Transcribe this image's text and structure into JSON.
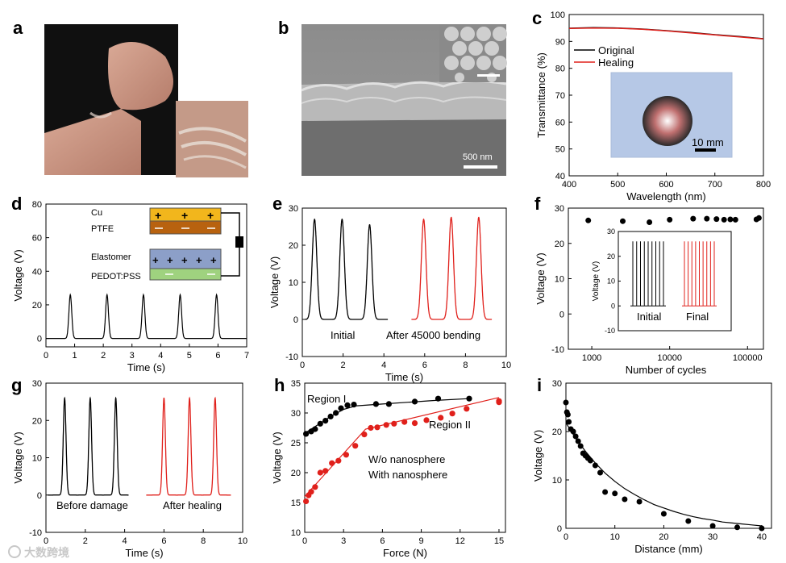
{
  "panel_labels": [
    "a",
    "b",
    "c",
    "d",
    "e",
    "f",
    "g",
    "h",
    "i"
  ],
  "watermark": "大数跨境",
  "chart_data": [
    {
      "panel": "b",
      "type": "image",
      "scale_bar_label": "500 nm"
    },
    {
      "panel": "c",
      "type": "line",
      "xlabel": "Wavelength (nm)",
      "ylabel": "Transmittance (%)",
      "xlim": [
        400,
        800
      ],
      "ylim": [
        40,
        100
      ],
      "xticks": [
        400,
        500,
        600,
        700,
        800
      ],
      "yticks": [
        40,
        50,
        60,
        70,
        80,
        90,
        100
      ],
      "series": [
        {
          "name": "Original",
          "color": "#000000",
          "x": [
            400,
            450,
            500,
            550,
            600,
            650,
            700,
            750,
            800
          ],
          "y": [
            94.9,
            95.1,
            95.0,
            94.6,
            94.0,
            93.3,
            92.5,
            91.8,
            91.0
          ]
        },
        {
          "name": "Healing",
          "color": "#e0201b",
          "x": [
            400,
            450,
            500,
            550,
            600,
            650,
            700,
            750,
            800
          ],
          "y": [
            94.8,
            95.0,
            94.9,
            94.5,
            93.9,
            93.2,
            92.4,
            91.7,
            90.9
          ]
        }
      ],
      "inset_scale_label": "10 mm"
    },
    {
      "panel": "d",
      "type": "line",
      "xlabel": "Time (s)",
      "ylabel": "Voltage (V)",
      "xlim": [
        0,
        7
      ],
      "ylim": [
        -5,
        80
      ],
      "xticks": [
        0,
        1,
        2,
        3,
        4,
        5,
        6,
        7
      ],
      "yticks": [
        0,
        20,
        40,
        60,
        80
      ],
      "peak_times": [
        0.85,
        2.13,
        3.4,
        4.68,
        5.95
      ],
      "peak_value": 26,
      "baseline": 0,
      "schematic_labels": [
        "Cu",
        "PTFE",
        "Elastomer",
        "PEDOT:PSS"
      ]
    },
    {
      "panel": "e",
      "type": "line",
      "xlabel": "Time (s)",
      "ylabel": "Voltage (V)",
      "xlim": [
        0,
        10
      ],
      "ylim": [
        -10,
        30
      ],
      "xticks": [
        0,
        2,
        4,
        6,
        8,
        10
      ],
      "yticks": [
        -10,
        0,
        10,
        20,
        30
      ],
      "series": [
        {
          "name": "Initial",
          "color": "#000000",
          "peak_times": [
            0.6,
            1.95,
            3.3
          ],
          "peak_values": [
            27,
            27,
            25.5
          ]
        },
        {
          "name": "After 45000 bending",
          "color": "#e0201b",
          "peak_times": [
            5.95,
            7.3,
            8.65
          ],
          "peak_values": [
            27,
            27.5,
            27.5
          ]
        }
      ]
    },
    {
      "panel": "f",
      "type": "scatter",
      "xlabel": "Number of cycles",
      "ylabel": "Voltage (V)",
      "xscale": "log",
      "xlim": [
        500,
        160000
      ],
      "ylim": [
        -10,
        30
      ],
      "xticks": [
        1000,
        10000,
        100000
      ],
      "xticklabels": [
        "1000",
        "10000",
        "100000"
      ],
      "yticks": [
        -10,
        0,
        10,
        20,
        30
      ],
      "x": [
        900,
        2500,
        5500,
        10000,
        20000,
        30000,
        40000,
        50000,
        60000,
        70000,
        130000,
        140000
      ],
      "y": [
        26.5,
        26.3,
        26.0,
        26.7,
        27.0,
        27.0,
        26.9,
        26.7,
        26.8,
        26.7,
        26.8,
        27.2
      ],
      "inset": {
        "ylim": [
          -10,
          30
        ],
        "yticks": [
          -10,
          0,
          10,
          20,
          30
        ],
        "labels": [
          "Initial",
          "Final"
        ],
        "peaks_per_group": 9,
        "peak_value": 26
      }
    },
    {
      "panel": "g",
      "type": "line",
      "xlabel": "Time (s)",
      "ylabel": "Voltage (V)",
      "xlim": [
        0,
        10
      ],
      "ylim": [
        -10,
        30
      ],
      "xticks": [
        0,
        2,
        4,
        6,
        8,
        10
      ],
      "yticks": [
        -10,
        0,
        10,
        20,
        30
      ],
      "series": [
        {
          "name": "Before damage",
          "color": "#000000",
          "peak_times": [
            0.95,
            2.25,
            3.55
          ],
          "peak_values": [
            26,
            26,
            26
          ]
        },
        {
          "name": "After healing",
          "color": "#e0201b",
          "peak_times": [
            6.0,
            7.3,
            8.6
          ],
          "peak_values": [
            26,
            26,
            26
          ]
        }
      ]
    },
    {
      "panel": "h",
      "type": "scatter",
      "xlabel": "Force (N)",
      "ylabel": "Voltage (V)",
      "xlim": [
        0,
        15.5
      ],
      "ylim": [
        10,
        35
      ],
      "xticks": [
        0,
        3,
        6,
        9,
        12,
        15
      ],
      "yticks": [
        10,
        15,
        20,
        25,
        30,
        35
      ],
      "annotations": [
        "Region I",
        "Region II"
      ],
      "series": [
        {
          "name": "W/o nanosphere",
          "color": "#000000",
          "x": [
            0.1,
            0.5,
            0.8,
            1.2,
            1.6,
            2.0,
            2.4,
            2.8,
            3.3,
            3.8,
            5.5,
            6.5,
            8.5,
            10.3,
            12.7
          ],
          "y": [
            26.5,
            26.9,
            27.3,
            28.2,
            28.7,
            29.4,
            30.0,
            30.8,
            31.3,
            31.4,
            31.5,
            31.5,
            31.9,
            32.4,
            32.4
          ],
          "fit_x": [
            0,
            1,
            2,
            3,
            4,
            6,
            8,
            10,
            12.7
          ],
          "fit_y": [
            26.6,
            28.0,
            29.4,
            30.6,
            31.2,
            31.5,
            31.8,
            32.1,
            32.4
          ]
        },
        {
          "name": "With nanosphere",
          "color": "#e0201b",
          "x": [
            0.1,
            0.3,
            0.5,
            0.8,
            1.2,
            1.6,
            2.1,
            2.6,
            3.2,
            3.9,
            4.6,
            5.1,
            5.6,
            6.3,
            6.9,
            7.7,
            8.5,
            9.4,
            10.5,
            11.4,
            12.5,
            15.0,
            15.0
          ],
          "y": [
            15.2,
            16.2,
            16.8,
            17.6,
            20.0,
            20.3,
            21.6,
            22.0,
            23.0,
            24.5,
            26.4,
            27.5,
            27.6,
            28.0,
            28.2,
            28.5,
            28.3,
            28.8,
            29.2,
            29.9,
            30.7,
            31.8,
            32.0
          ],
          "fit_x": [
            0,
            4.7,
            15
          ],
          "fit_y": [
            16.0,
            27.3,
            32.6
          ]
        }
      ]
    },
    {
      "panel": "i",
      "type": "scatter",
      "xlabel": "Distance (mm)",
      "ylabel": "Voltage (V)",
      "xlim": [
        0,
        42
      ],
      "ylim": [
        0,
        30
      ],
      "xticks": [
        0,
        10,
        20,
        30,
        40
      ],
      "yticks": [
        0,
        10,
        20,
        30
      ],
      "x": [
        0,
        0.2,
        0.4,
        0.6,
        1,
        1.5,
        2,
        2.5,
        3,
        3.5,
        4,
        4.5,
        5,
        6,
        7,
        8,
        10,
        12,
        15,
        20,
        25,
        30,
        35,
        40
      ],
      "y": [
        26,
        24,
        23.5,
        22,
        20.5,
        20,
        19,
        18,
        17,
        15.5,
        15,
        14.5,
        14,
        13,
        11.5,
        7.5,
        7.2,
        6,
        5.5,
        3,
        1.5,
        0.5,
        0.2,
        0
      ],
      "fit": "exponential_decay",
      "fit_x": [
        0,
        2,
        4,
        6,
        8,
        10,
        12,
        14,
        16,
        18,
        20,
        22,
        24,
        26,
        28,
        30,
        32,
        34,
        36,
        38,
        40
      ],
      "fit_y": [
        21.8,
        18.6,
        15.9,
        13.5,
        11.4,
        9.7,
        8.2,
        7.0,
        5.9,
        4.9,
        4.2,
        3.5,
        2.9,
        2.4,
        2.0,
        1.7,
        1.3,
        1.1,
        0.9,
        0.7,
        0.5
      ]
    }
  ]
}
